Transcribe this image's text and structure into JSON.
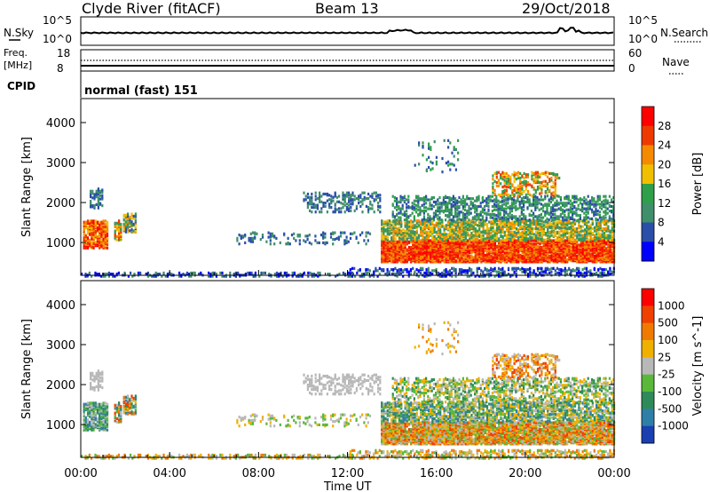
{
  "header": {
    "station": "Clyde River (fitACF)",
    "beam": "Beam 13",
    "date": "29/Oct/2018"
  },
  "strip1": {
    "left_label": "N.Sky",
    "left_ticks": [
      "10^5",
      "10^0"
    ],
    "right_label": "N.Search",
    "right_ticks": [
      "10^5",
      "10^0"
    ]
  },
  "strip2": {
    "left_label_1": "Freq.",
    "left_label_2": "[MHz]",
    "left_ticks": [
      "18",
      "8"
    ],
    "right_label": "Nave",
    "right_ticks": [
      "60",
      "0"
    ],
    "cpid_label": "CPID",
    "cpid_text": "normal (fast) 151"
  },
  "chart_data": [
    {
      "type": "heatmap",
      "title": "Power",
      "ylabel": "Slant Range [km]",
      "xlabel": "Time UT",
      "xlim": [
        "00:00",
        "24:00"
      ],
      "ylim": [
        180,
        4600
      ],
      "x_ticks": [
        "00:00",
        "04:00",
        "08:00",
        "12:00",
        "16:00",
        "20:00",
        "00:00"
      ],
      "y_ticks": [
        1000,
        2000,
        3000,
        4000
      ],
      "colorbar": {
        "label": "Power [dB]",
        "ticks": [
          "4",
          "8",
          "12",
          "16",
          "20",
          "24",
          "28"
        ],
        "colors": [
          "#0000ff",
          "#2b4fa8",
          "#3f8f6a",
          "#2f9f4a",
          "#f0c000",
          "#f58a00",
          "#ee3a00",
          "#ff0000"
        ]
      }
    },
    {
      "type": "heatmap",
      "title": "Velocity",
      "ylabel": "Slant Range [km]",
      "xlabel": "Time UT",
      "xlim": [
        "00:00",
        "24:00"
      ],
      "ylim": [
        180,
        4600
      ],
      "x_ticks": [
        "00:00",
        "04:00",
        "08:00",
        "12:00",
        "16:00",
        "20:00",
        "00:00"
      ],
      "y_ticks": [
        1000,
        2000,
        3000,
        4000
      ],
      "colorbar": {
        "label": "Velocity [m s^-1]",
        "ticks": [
          "1000",
          "500",
          "100",
          "25",
          "-25",
          "-100",
          "-500",
          "-1000"
        ],
        "colors": [
          "#1a3fb0",
          "#2e7fa8",
          "#2f8a5a",
          "#59b83a",
          "#b8b8b8",
          "#f0b000",
          "#f07a00",
          "#f04000",
          "#ff0000"
        ]
      }
    }
  ]
}
